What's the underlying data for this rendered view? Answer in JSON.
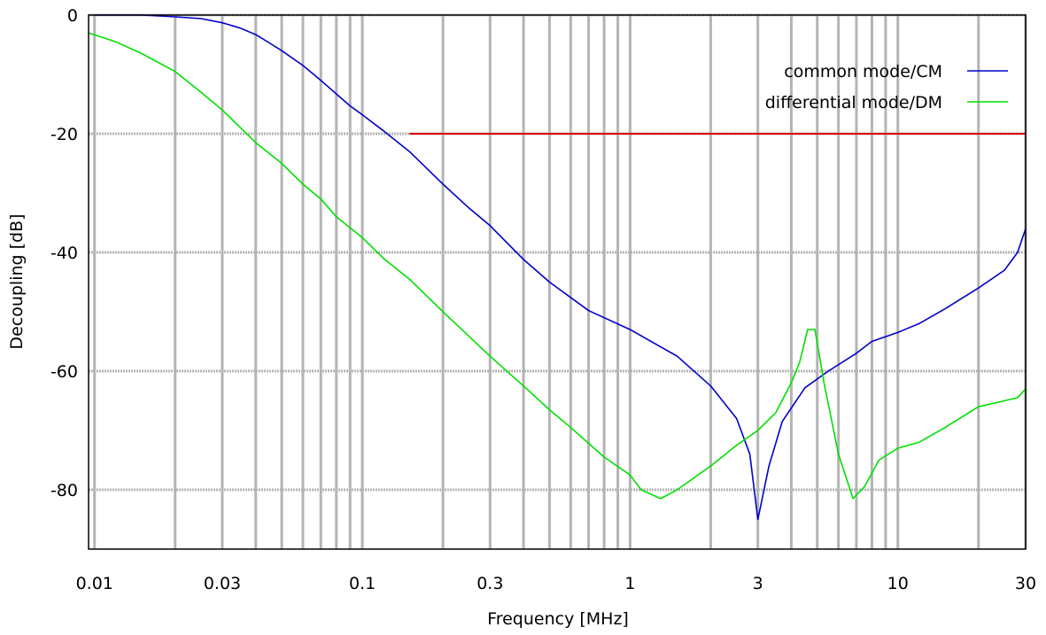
{
  "chart_data": {
    "type": "line",
    "title": "",
    "xlabel": "Frequency [MHz]",
    "ylabel": "Decoupling [dB]",
    "x_scale": "log",
    "xlim": [
      0.0095,
      30
    ],
    "ylim": [
      -90,
      0
    ],
    "grid": true,
    "legend_position": "top-right",
    "x_ticks": [
      {
        "value": 0.01,
        "label": "0.01"
      },
      {
        "value": 0.03,
        "label": "0.03"
      },
      {
        "value": 0.1,
        "label": "0.1"
      },
      {
        "value": 0.3,
        "label": "0.3"
      },
      {
        "value": 1,
        "label": "1"
      },
      {
        "value": 3,
        "label": "3"
      },
      {
        "value": 10,
        "label": "10"
      },
      {
        "value": 30,
        "label": "30"
      }
    ],
    "y_ticks": [
      {
        "value": 0,
        "label": "0"
      },
      {
        "value": -20,
        "label": "-20"
      },
      {
        "value": -40,
        "label": "-40"
      },
      {
        "value": -60,
        "label": "-60"
      },
      {
        "value": -80,
        "label": "-80"
      }
    ],
    "series": [
      {
        "name": "common mode/CM",
        "color": "#0000cc",
        "x": [
          0.01,
          0.012,
          0.015,
          0.02,
          0.025,
          0.03,
          0.035,
          0.04,
          0.045,
          0.05,
          0.06,
          0.07,
          0.08,
          0.09,
          0.1,
          0.12,
          0.15,
          0.2,
          0.25,
          0.3,
          0.4,
          0.5,
          0.7,
          1.0,
          1.5,
          2.0,
          2.5,
          2.8,
          3.0,
          3.3,
          3.7,
          4.5,
          5.5,
          7.0,
          8.0,
          10,
          12,
          15,
          20,
          25,
          28,
          30
        ],
        "y": [
          0,
          0,
          0,
          -0.3,
          -0.6,
          -1.3,
          -2.2,
          -3.3,
          -4.7,
          -6,
          -8.5,
          -11,
          -13.3,
          -15.3,
          -16.8,
          -19.5,
          -23,
          -28.5,
          -32.5,
          -35.5,
          -41.2,
          -45,
          -49.8,
          -53,
          -57.5,
          -62.5,
          -68,
          -74,
          -85,
          -76,
          -68.5,
          -62.8,
          -60,
          -57,
          -55,
          -53.5,
          -52,
          -49.5,
          -46,
          -43,
          -40,
          -36
        ]
      },
      {
        "name": "differential mode/DM",
        "color": "#00e000",
        "x": [
          0.0095,
          0.012,
          0.015,
          0.02,
          0.025,
          0.03,
          0.04,
          0.05,
          0.06,
          0.07,
          0.08,
          0.1,
          0.12,
          0.15,
          0.2,
          0.3,
          0.4,
          0.5,
          0.6,
          0.8,
          1.0,
          1.1,
          1.3,
          1.5,
          2.0,
          2.5,
          3.0,
          3.5,
          4.0,
          4.3,
          4.6,
          4.9,
          5.3,
          6.0,
          6.8,
          7.5,
          8.5,
          10,
          12,
          15,
          20,
          25,
          28,
          30
        ],
        "y": [
          -3,
          -4.5,
          -6.5,
          -9.5,
          -13,
          -16,
          -21.5,
          -25,
          -28.5,
          -31,
          -34,
          -37.5,
          -41,
          -44.5,
          -50,
          -57.5,
          -62.5,
          -66.5,
          -69.5,
          -74.5,
          -77.5,
          -80,
          -81.5,
          -80,
          -76,
          -72.5,
          -70,
          -67,
          -62,
          -58.5,
          -53,
          -53,
          -62,
          -74,
          -81.5,
          -79.5,
          -75,
          -73,
          -72,
          -69.5,
          -66,
          -65,
          -64.5,
          -63
        ]
      }
    ],
    "reference_line": {
      "y": -20,
      "x_start": 0.15,
      "x_end": 30,
      "color": "#dd0000"
    }
  }
}
